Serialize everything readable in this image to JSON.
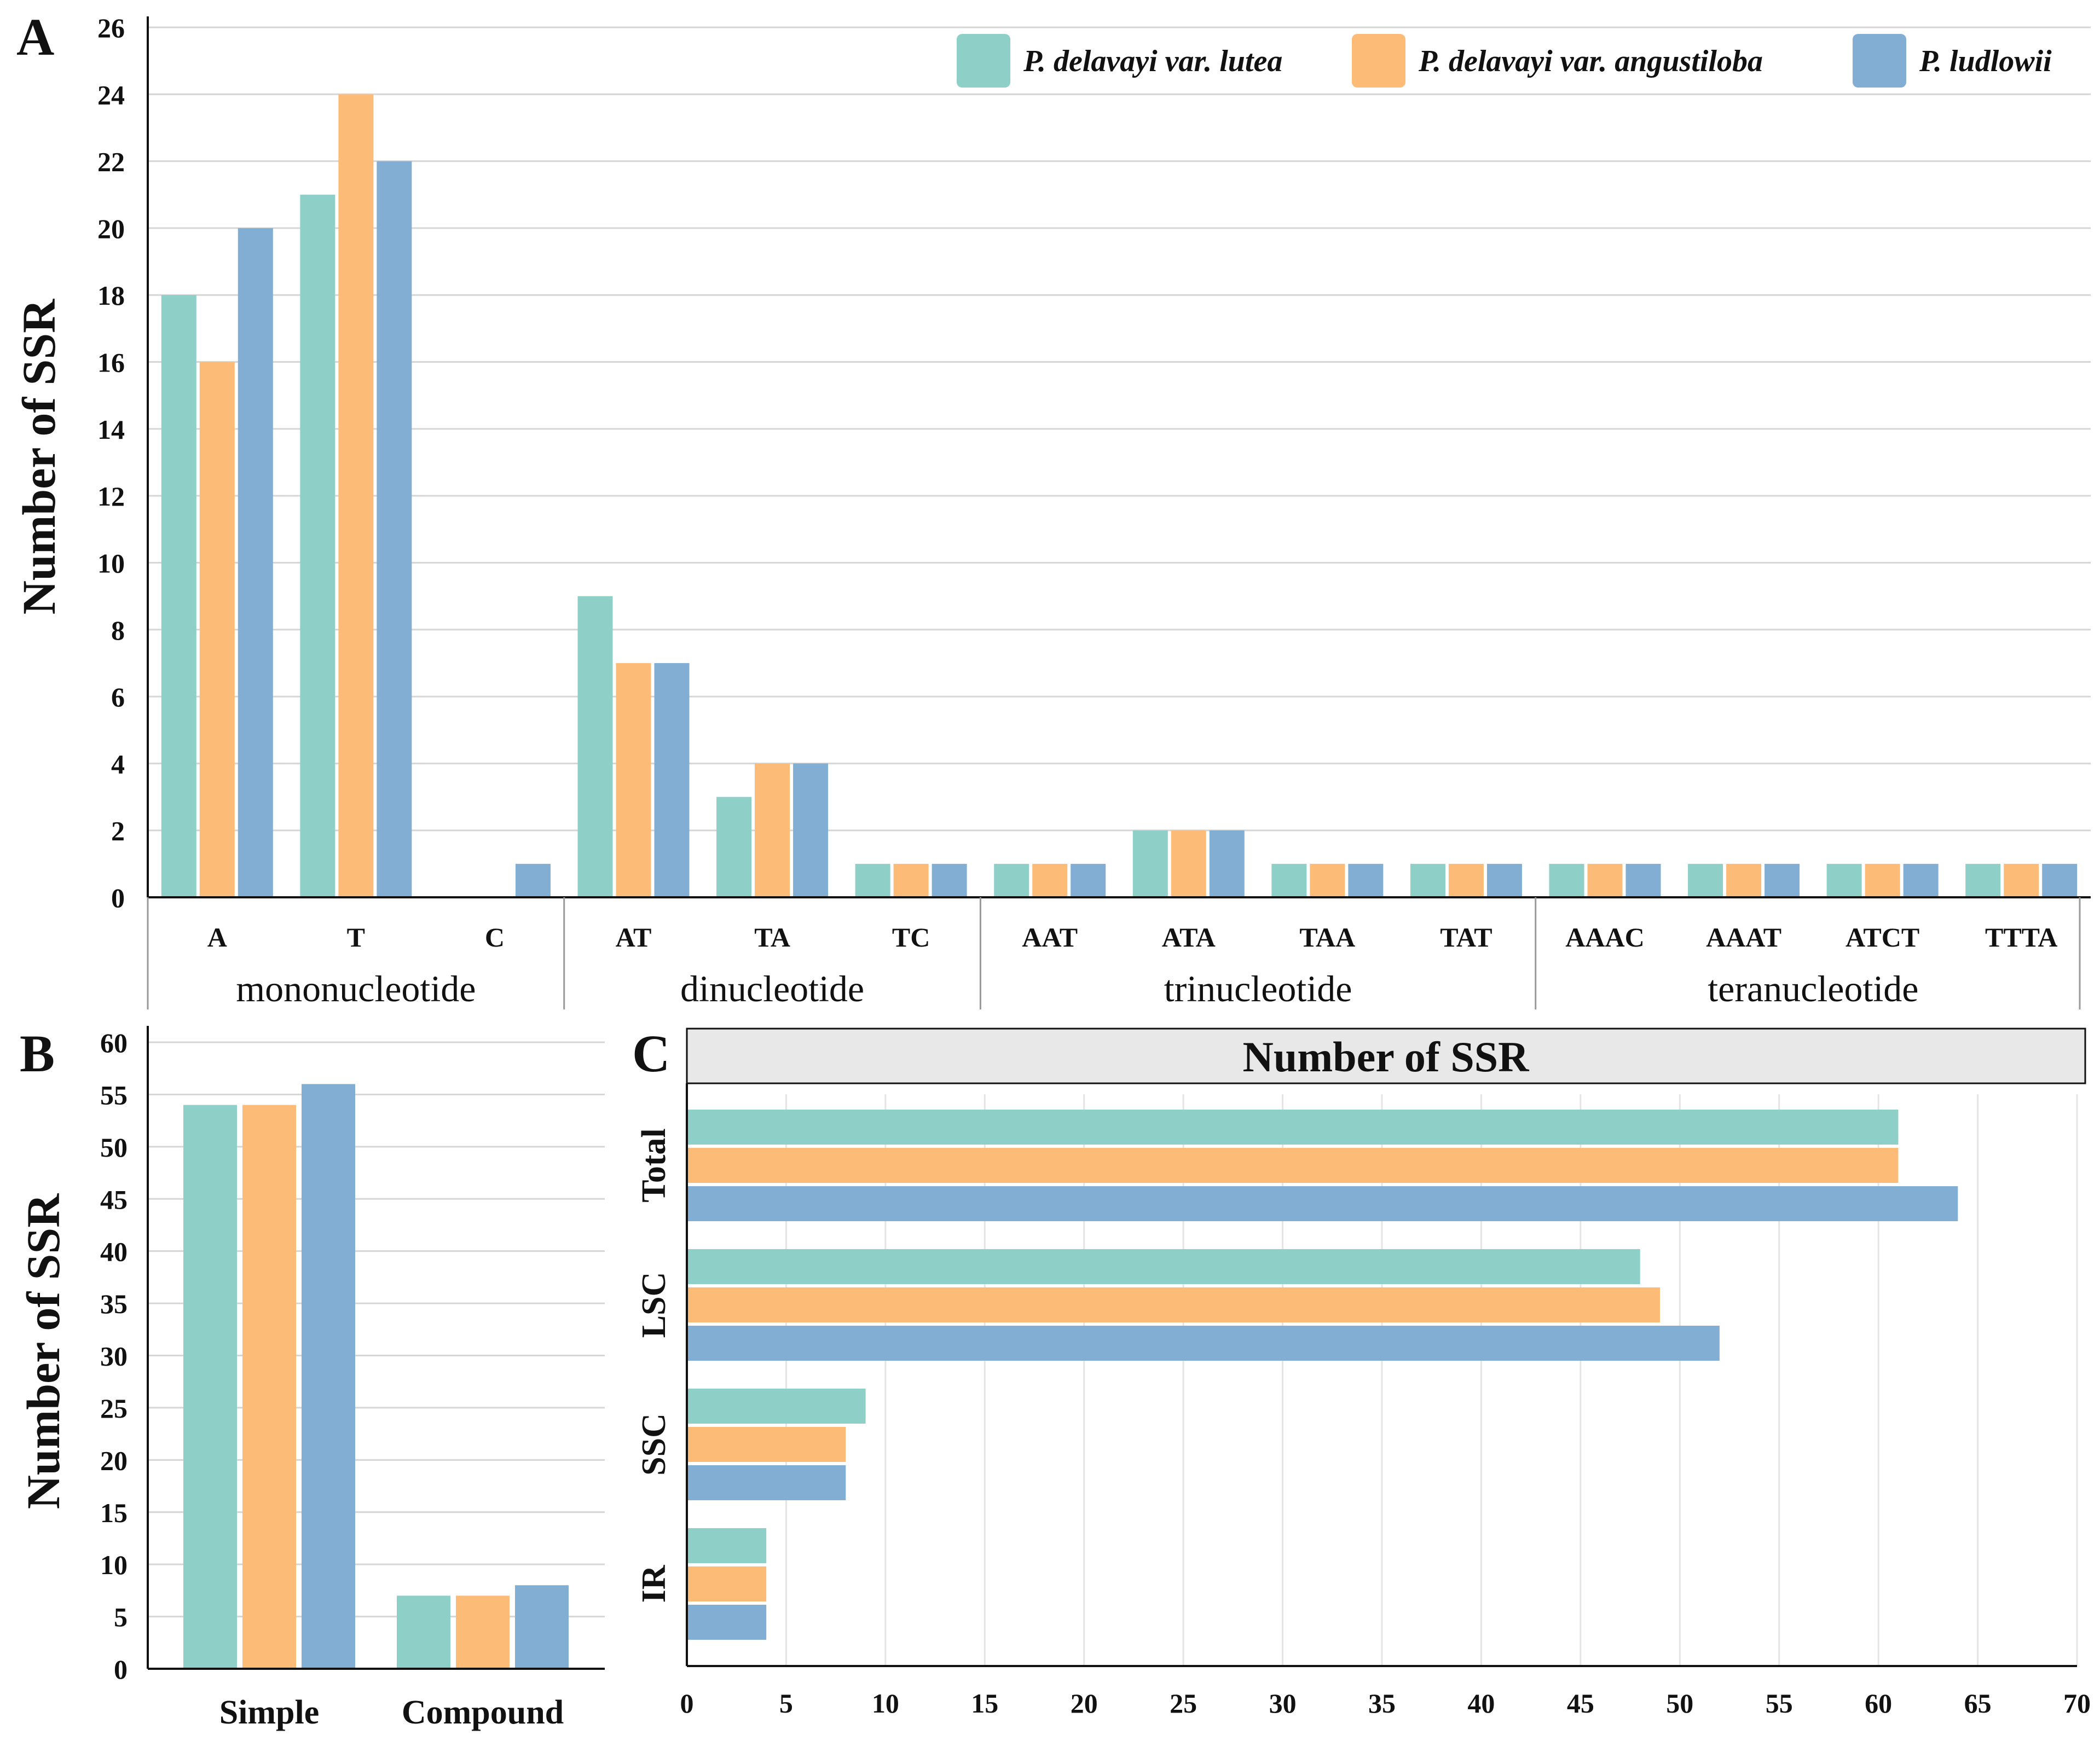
{
  "colors": {
    "series": [
      "#8ecfc8",
      "#fdbb78",
      "#82aed3"
    ],
    "grid": "#d6d6d6",
    "axis": "#111111",
    "header_fill": "#e8e8e8"
  },
  "legend": [
    "P. delavayi var. lutea",
    "P. delavayi var. angustiloba",
    "P. ludlowii"
  ],
  "chart_data": [
    {
      "panel": "A",
      "type": "bar",
      "ylabel": "Number of SSR",
      "ylim": [
        0,
        26
      ],
      "yticks": [
        0,
        2,
        4,
        6,
        8,
        10,
        12,
        14,
        16,
        18,
        20,
        22,
        24,
        26
      ],
      "categories": [
        "A",
        "T",
        "C",
        "AT",
        "TA",
        "TC",
        "AAT",
        "ATA",
        "TAA",
        "TAT",
        "AAAC",
        "AAAT",
        "ATCT",
        "TTTA"
      ],
      "groups": [
        {
          "label": "mononucleotide",
          "count": 3
        },
        {
          "label": "dinucleotide",
          "count": 3
        },
        {
          "label": "trinucleotide",
          "count": 4
        },
        {
          "label": "teranucleotide",
          "count": 4
        }
      ],
      "series": [
        {
          "name": "P. delavayi var. lutea",
          "values": [
            18,
            21,
            0,
            9,
            3,
            1,
            1,
            2,
            1,
            1,
            1,
            1,
            1,
            1
          ]
        },
        {
          "name": "P. delavayi var. angustiloba",
          "values": [
            16,
            24,
            0,
            7,
            4,
            1,
            1,
            2,
            1,
            1,
            1,
            1,
            1,
            1
          ]
        },
        {
          "name": "P. ludlowii",
          "values": [
            20,
            22,
            1,
            7,
            4,
            1,
            1,
            2,
            1,
            1,
            1,
            1,
            1,
            1
          ]
        }
      ]
    },
    {
      "panel": "B",
      "type": "bar",
      "ylabel": "Number of SSR",
      "ylim": [
        0,
        60
      ],
      "yticks": [
        0,
        5,
        10,
        15,
        20,
        25,
        30,
        35,
        40,
        45,
        50,
        55,
        60
      ],
      "categories": [
        "Simple",
        "Compound"
      ],
      "series": [
        {
          "name": "P. delavayi var. lutea",
          "values": [
            54,
            7
          ]
        },
        {
          "name": "P. delavayi var. angustiloba",
          "values": [
            54,
            7
          ]
        },
        {
          "name": "P. ludlowii",
          "values": [
            56,
            8
          ]
        }
      ]
    },
    {
      "panel": "C",
      "type": "bar",
      "orientation": "horizontal",
      "title": "Number of SSR",
      "xlim": [
        0,
        70
      ],
      "xticks": [
        0,
        5,
        10,
        15,
        20,
        25,
        30,
        35,
        40,
        45,
        50,
        55,
        60,
        65,
        70
      ],
      "categories": [
        "Total",
        "LSC",
        "SSC",
        "IR"
      ],
      "series": [
        {
          "name": "P. delavayi var. lutea",
          "values": [
            61,
            48,
            9,
            4
          ]
        },
        {
          "name": "P. delavayi var. angustiloba",
          "values": [
            61,
            49,
            8,
            4
          ]
        },
        {
          "name": "P. ludlowii",
          "values": [
            64,
            52,
            8,
            4
          ]
        }
      ]
    }
  ]
}
